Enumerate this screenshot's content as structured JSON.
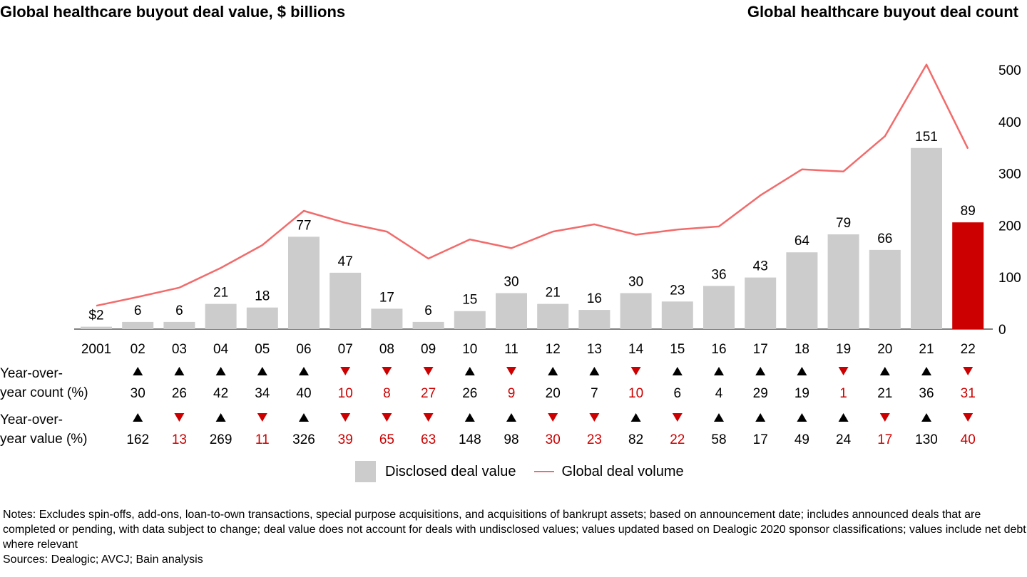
{
  "titles": {
    "left": "Global healthcare buyout deal value, $ billions",
    "right": "Global healthcare buyout deal count"
  },
  "yoy": {
    "count_label_1": "Year-over-",
    "count_label_2": "year count (%)",
    "value_label_1": "Year-over-",
    "value_label_2": "year value (%)"
  },
  "legend": {
    "bar_label": "Disclosed deal value",
    "line_label": "Global deal volume"
  },
  "notes": {
    "text": "Notes: Excludes spin-offs, add-ons, loan-to-own transactions, special purpose acquisitions, and acquisitions of bankrupt assets; based on announcement date; includes announced deals that are completed or pending, with data subject to change; deal value does not account for deals with undisclosed values; values updated based on Dealogic 2020 sponsor classifications; values include net debt where relevant",
    "sources": "Sources: Dealogic; AVCJ; Bain analysis"
  },
  "colors": {
    "bar": "#cccccc",
    "bar_highlight": "#cc0000",
    "line": "#f26b6b",
    "up": "#000000",
    "down": "#cc0000"
  },
  "chart_data": {
    "type": "bar",
    "categories": [
      "2001",
      "02",
      "03",
      "04",
      "05",
      "06",
      "07",
      "08",
      "09",
      "10",
      "11",
      "12",
      "13",
      "14",
      "15",
      "16",
      "17",
      "18",
      "19",
      "20",
      "21",
      "22"
    ],
    "series": [
      {
        "name": "Disclosed deal value",
        "type": "bar",
        "axis": "left",
        "values": [
          2,
          6,
          6,
          21,
          18,
          77,
          47,
          17,
          6,
          15,
          30,
          21,
          16,
          30,
          23,
          36,
          43,
          64,
          79,
          66,
          151,
          89
        ],
        "labels": [
          "$2",
          "6",
          "6",
          "21",
          "18",
          "77",
          "47",
          "17",
          "6",
          "15",
          "30",
          "21",
          "16",
          "30",
          "23",
          "36",
          "43",
          "64",
          "79",
          "66",
          "151",
          "89"
        ]
      },
      {
        "name": "Global deal volume",
        "type": "line",
        "axis": "right",
        "values": [
          45,
          62,
          80,
          118,
          162,
          228,
          205,
          188,
          136,
          173,
          156,
          188,
          202,
          182,
          192,
          198,
          258,
          308,
          304,
          372,
          510,
          348
        ]
      }
    ],
    "highlight_index": 21,
    "y_left_range": [
      0,
      196
    ],
    "y_right": {
      "range": [
        0,
        520
      ],
      "ticks": [
        "0",
        "100",
        "200",
        "300",
        "400",
        "500"
      ]
    },
    "yoy_count": {
      "direction": [
        "up",
        "up",
        "up",
        "up",
        "up",
        "down",
        "down",
        "down",
        "up",
        "down",
        "up",
        "up",
        "down",
        "up",
        "up",
        "up",
        "up",
        "down",
        "up",
        "up",
        "down"
      ],
      "values": [
        "30",
        "26",
        "42",
        "34",
        "40",
        "10",
        "8",
        "27",
        "26",
        "9",
        "20",
        "7",
        "10",
        "6",
        "4",
        "29",
        "19",
        "1",
        "21",
        "36",
        "31"
      ]
    },
    "yoy_value": {
      "direction": [
        "up",
        "down",
        "up",
        "down",
        "up",
        "down",
        "down",
        "down",
        "up",
        "up",
        "down",
        "down",
        "up",
        "down",
        "up",
        "up",
        "up",
        "up",
        "down",
        "up",
        "down"
      ],
      "values": [
        "162",
        "13",
        "269",
        "11",
        "326",
        "39",
        "65",
        "63",
        "148",
        "98",
        "30",
        "23",
        "82",
        "22",
        "58",
        "17",
        "49",
        "24",
        "17",
        "130",
        "40"
      ]
    }
  }
}
